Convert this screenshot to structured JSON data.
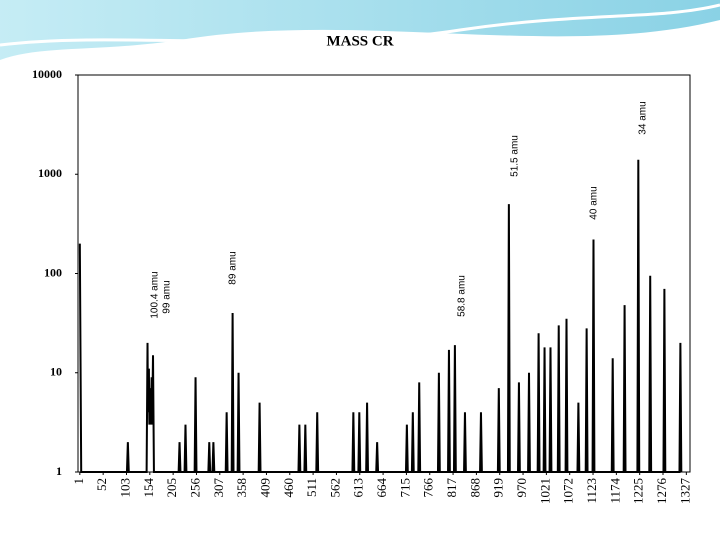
{
  "chart_data": {
    "type": "line",
    "title": "MASS CR",
    "x": [
      1,
      4,
      104,
      106,
      108,
      147,
      149,
      150,
      152,
      153,
      155,
      156,
      158,
      159,
      161,
      163,
      217,
      219,
      221,
      230,
      232,
      234,
      252,
      254,
      256,
      282,
      284,
      286,
      291,
      293,
      295,
      320,
      322,
      324,
      333,
      335,
      337,
      346,
      348,
      350,
      392,
      394,
      396,
      479,
      481,
      483,
      492,
      494,
      496,
      518,
      520,
      522,
      597,
      599,
      601,
      610,
      612,
      614,
      627,
      629,
      631,
      649,
      651,
      653,
      714,
      716,
      718,
      727,
      729,
      731,
      741,
      743,
      745,
      784,
      786,
      788,
      806,
      808,
      810,
      819,
      821,
      823,
      841,
      843,
      845,
      876,
      878,
      880,
      915,
      917,
      919,
      937,
      939,
      941,
      959,
      961,
      963,
      981,
      983,
      985,
      1002,
      1004,
      1006,
      1015,
      1017,
      1019,
      1028,
      1030,
      1032,
      1046,
      1048,
      1050,
      1063,
      1065,
      1067,
      1089,
      1091,
      1093,
      1107,
      1109,
      1111,
      1122,
      1124,
      1126,
      1164,
      1166,
      1168,
      1190,
      1192,
      1194,
      1220,
      1222,
      1224,
      1246,
      1248,
      1250,
      1277,
      1279,
      1281,
      1312,
      1314,
      1316
    ],
    "series": [
      {
        "color": "#000000",
        "values": [
          200,
          1,
          1,
          2,
          1,
          1,
          20,
          4,
          11,
          3,
          7,
          3,
          9,
          3,
          15,
          1,
          1,
          2,
          1,
          1,
          3,
          1,
          1,
          9,
          1,
          1,
          2,
          1,
          1,
          2,
          1,
          1,
          4,
          1,
          1,
          40,
          1,
          1,
          10,
          1,
          1,
          5,
          1,
          1,
          3,
          1,
          1,
          3,
          1,
          1,
          4,
          1,
          1,
          4,
          1,
          1,
          4,
          1,
          1,
          5,
          1,
          1,
          2,
          1,
          1,
          3,
          1,
          1,
          4,
          1,
          1,
          8,
          1,
          1,
          10,
          1,
          1,
          17,
          1,
          1,
          19,
          1,
          1,
          4,
          1,
          1,
          4,
          1,
          1,
          7,
          1,
          1,
          500,
          1,
          1,
          8,
          1,
          1,
          10,
          1,
          1,
          25,
          1,
          1,
          18,
          1,
          1,
          18,
          1,
          1,
          30,
          1,
          1,
          35,
          1,
          1,
          5,
          1,
          1,
          28,
          1,
          1,
          220,
          1,
          1,
          14,
          1,
          1,
          48,
          1,
          1,
          1400,
          1,
          1,
          95,
          1,
          1,
          70,
          1,
          1,
          20,
          1
        ]
      }
    ],
    "xlim": [
      -3,
      1335
    ],
    "xticks": [
      1,
      52,
      103,
      154,
      205,
      256,
      307,
      358,
      409,
      460,
      511,
      562,
      613,
      664,
      715,
      766,
      817,
      868,
      919,
      970,
      1021,
      1072,
      1123,
      1174,
      1225,
      1276,
      1327
    ],
    "ylim": [
      1,
      10000
    ],
    "yticks": [
      1,
      10,
      100,
      1000,
      10000
    ],
    "log_y": true,
    "annotations": [
      "100.4 amu",
      "99 amu",
      "89 amu",
      "58.8 amu",
      "51.5 amu",
      "40 amu",
      "34 amu"
    ]
  }
}
